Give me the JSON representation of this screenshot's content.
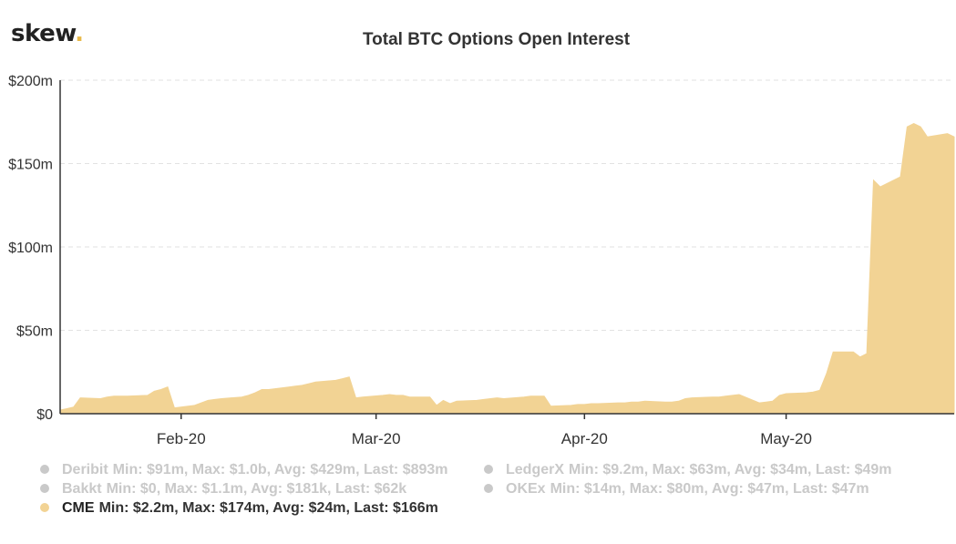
{
  "logo": {
    "text": "skew",
    "dot": "."
  },
  "chart_data": {
    "type": "area",
    "title": "Total BTC Options Open Interest",
    "xlabel": "",
    "ylabel": "",
    "x_ticks": [
      "Feb-20",
      "Mar-20",
      "Apr-20",
      "May-20"
    ],
    "y_ticks": [
      "$0",
      "$50m",
      "$100m",
      "$150m",
      "$200m"
    ],
    "ylim": [
      0,
      200
    ],
    "y_unit": "millions USD",
    "grid": "horizontal dashed",
    "x_start": "2020-01-14",
    "x_end": "2020-05-26",
    "series": [
      {
        "name": "CME",
        "color": "#f2d394",
        "dates": [
          "2020-01-14",
          "2020-01-15",
          "2020-01-16",
          "2020-01-17",
          "2020-01-20",
          "2020-01-21",
          "2020-01-22",
          "2020-01-23",
          "2020-01-24",
          "2020-01-27",
          "2020-01-28",
          "2020-01-29",
          "2020-01-30",
          "2020-01-31",
          "2020-02-03",
          "2020-02-04",
          "2020-02-05",
          "2020-02-06",
          "2020-02-07",
          "2020-02-10",
          "2020-02-11",
          "2020-02-12",
          "2020-02-13",
          "2020-02-14",
          "2020-02-17",
          "2020-02-18",
          "2020-02-19",
          "2020-02-20",
          "2020-02-21",
          "2020-02-24",
          "2020-02-25",
          "2020-02-26",
          "2020-02-27",
          "2020-02-28",
          "2020-03-02",
          "2020-03-03",
          "2020-03-04",
          "2020-03-05",
          "2020-03-06",
          "2020-03-09",
          "2020-03-10",
          "2020-03-11",
          "2020-03-12",
          "2020-03-13",
          "2020-03-16",
          "2020-03-17",
          "2020-03-18",
          "2020-03-19",
          "2020-03-20",
          "2020-03-23",
          "2020-03-24",
          "2020-03-25",
          "2020-03-26",
          "2020-03-27",
          "2020-03-30",
          "2020-03-31",
          "2020-04-01",
          "2020-04-02",
          "2020-04-03",
          "2020-04-06",
          "2020-04-07",
          "2020-04-08",
          "2020-04-09",
          "2020-04-10",
          "2020-04-13",
          "2020-04-14",
          "2020-04-15",
          "2020-04-16",
          "2020-04-17",
          "2020-04-20",
          "2020-04-21",
          "2020-04-22",
          "2020-04-23",
          "2020-04-24",
          "2020-04-27",
          "2020-04-28",
          "2020-04-29",
          "2020-04-30",
          "2020-05-01",
          "2020-05-04",
          "2020-05-05",
          "2020-05-06",
          "2020-05-07",
          "2020-05-08",
          "2020-05-11",
          "2020-05-12",
          "2020-05-13",
          "2020-05-14",
          "2020-05-15",
          "2020-05-18",
          "2020-05-19",
          "2020-05-20",
          "2020-05-21",
          "2020-05-22",
          "2020-05-25",
          "2020-05-26"
        ],
        "values": [
          2.2,
          3,
          4,
          9.5,
          9,
          10,
          10.5,
          10.5,
          10.5,
          11,
          13.5,
          14.5,
          16,
          3.5,
          5,
          6.5,
          8,
          8.5,
          9,
          10,
          11,
          12.5,
          14.5,
          14.5,
          16,
          16.5,
          17,
          18,
          19,
          20,
          21,
          22,
          9.5,
          10,
          11,
          11.5,
          11,
          11,
          10,
          10,
          5,
          8,
          6,
          7.5,
          8,
          8.5,
          9,
          9.5,
          9,
          10,
          10.5,
          10.5,
          10.5,
          4.5,
          5,
          5.5,
          5.5,
          6,
          6,
          6.5,
          6.5,
          7,
          7,
          7.5,
          7,
          7,
          7.5,
          9,
          9.5,
          10,
          10,
          10.5,
          11,
          11.5,
          6.5,
          7,
          7.5,
          11,
          12,
          12.5,
          13,
          14,
          24,
          37,
          37,
          34,
          36,
          140,
          136,
          142,
          172,
          174,
          172,
          166,
          168,
          166
        ]
      }
    ]
  },
  "legend": [
    {
      "name": "Deribit",
      "stats": "Min: $91m, Max: $1.0b, Avg: $429m, Last: $893m",
      "active": false,
      "color": "#c9c9c9"
    },
    {
      "name": "LedgerX",
      "stats": "Min: $9.2m, Max: $63m, Avg: $34m, Last: $49m",
      "active": false,
      "color": "#c9c9c9"
    },
    {
      "name": "Bakkt",
      "stats": "Min: $0, Max: $1.1m, Avg: $181k, Last: $62k",
      "active": false,
      "color": "#c9c9c9"
    },
    {
      "name": "OKEx",
      "stats": "Min: $14m, Max: $80m, Avg: $47m, Last: $47m",
      "active": false,
      "color": "#c9c9c9"
    },
    {
      "name": "CME",
      "stats": "Min: $2.2m, Max: $174m, Avg: $24m, Last: $166m",
      "active": true,
      "color": "#f2d394"
    }
  ]
}
